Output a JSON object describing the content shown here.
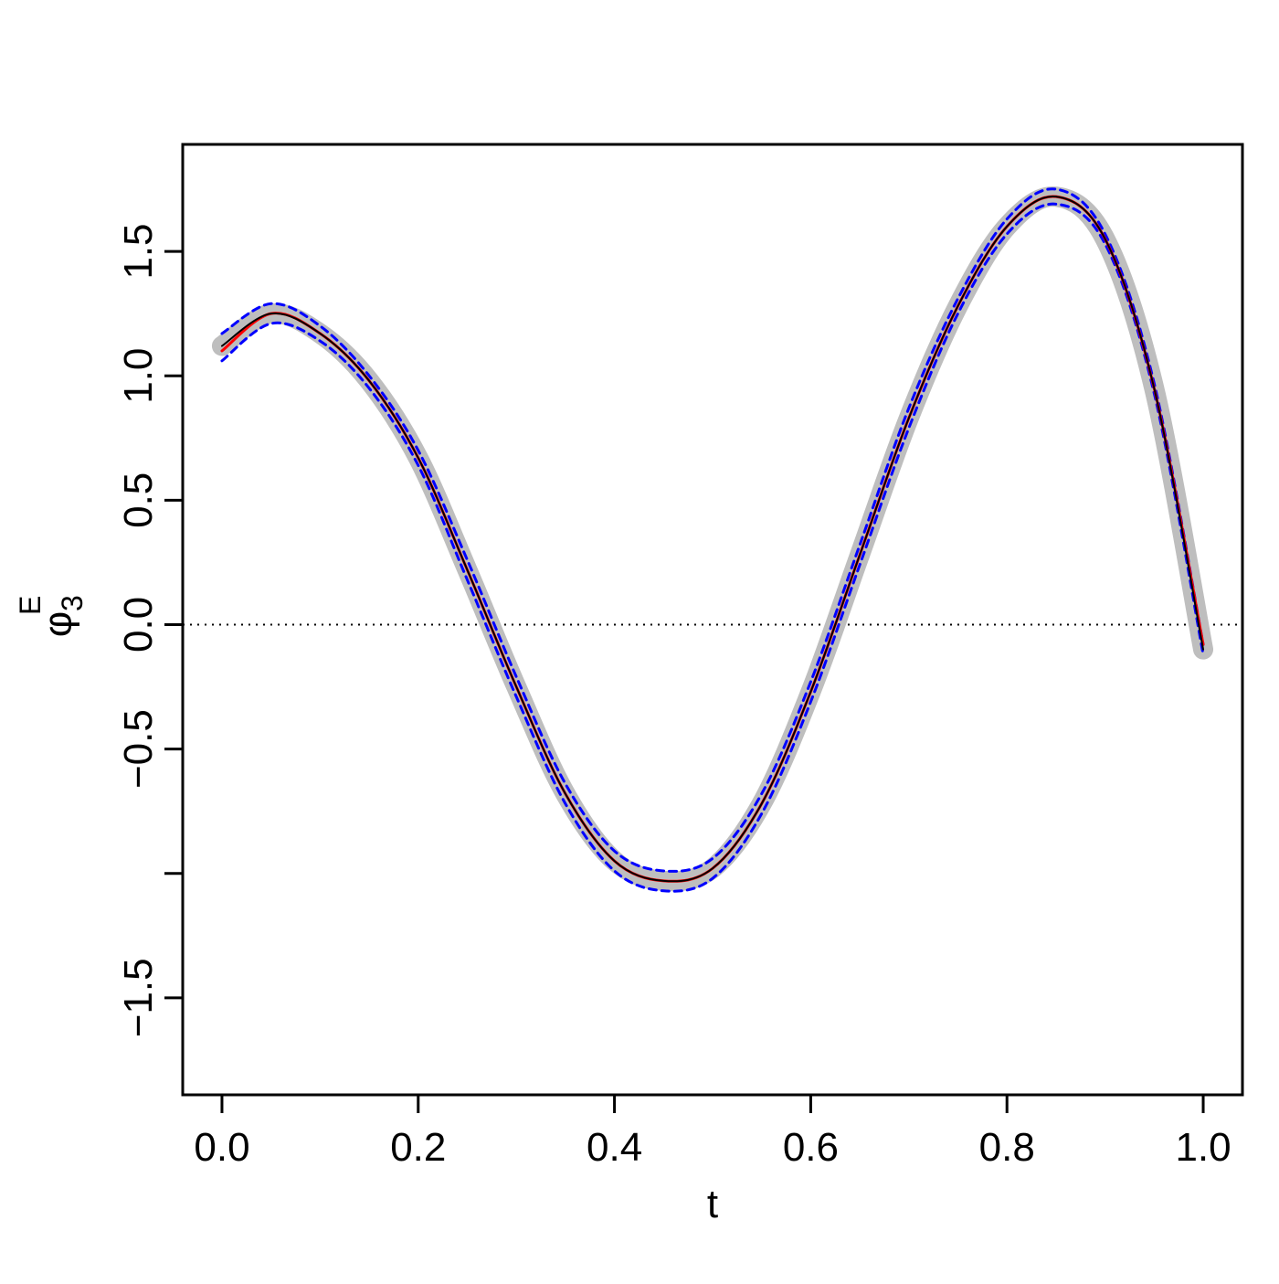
{
  "chart_data": {
    "type": "line",
    "xlabel": "t",
    "ylabel": {
      "symbol": "φ",
      "sub": "3",
      "sup": "E"
    },
    "x": [
      0,
      0.05,
      0.1,
      0.15,
      0.2,
      0.25,
      0.3,
      0.35,
      0.4,
      0.45,
      0.5,
      0.55,
      0.6,
      0.65,
      0.7,
      0.75,
      0.8,
      0.85,
      0.9,
      0.95,
      1.0
    ],
    "series": [
      {
        "color": "#bebebe",
        "width": 22,
        "dash": "none",
        "values": [
          1.12,
          1.25,
          1.17,
          0.98,
          0.67,
          0.22,
          -0.25,
          -0.68,
          -0.95,
          -1.03,
          -0.98,
          -0.72,
          -0.27,
          0.28,
          0.83,
          1.28,
          1.6,
          1.72,
          1.55,
          0.95,
          -0.1
        ]
      },
      {
        "color": "#0000ff",
        "width": 3,
        "dash": "8 6",
        "values": [
          1.17,
          1.29,
          1.2,
          1.0,
          0.7,
          0.26,
          -0.21,
          -0.64,
          -0.91,
          -0.99,
          -0.94,
          -0.68,
          -0.23,
          0.32,
          0.87,
          1.31,
          1.63,
          1.75,
          1.57,
          0.97,
          -0.08
        ]
      },
      {
        "color": "#0000ff",
        "width": 3,
        "dash": "8 6",
        "values": [
          1.06,
          1.21,
          1.14,
          0.95,
          0.64,
          0.18,
          -0.29,
          -0.72,
          -0.99,
          -1.07,
          -1.02,
          -0.76,
          -0.31,
          0.24,
          0.79,
          1.25,
          1.57,
          1.69,
          1.53,
          0.93,
          -0.12
        ]
      },
      {
        "color": "#ff0000",
        "width": 3,
        "dash": "none",
        "values": [
          1.1,
          1.25,
          1.17,
          0.98,
          0.67,
          0.22,
          -0.25,
          -0.68,
          -0.95,
          -1.03,
          -0.98,
          -0.72,
          -0.27,
          0.28,
          0.83,
          1.28,
          1.6,
          1.72,
          1.55,
          0.95,
          -0.08
        ]
      },
      {
        "color": "#000000",
        "width": 2,
        "dash": "none",
        "values": [
          1.12,
          1.25,
          1.17,
          0.98,
          0.67,
          0.22,
          -0.25,
          -0.68,
          -0.95,
          -1.03,
          -0.98,
          -0.72,
          -0.27,
          0.28,
          0.83,
          1.28,
          1.6,
          1.72,
          1.55,
          0.95,
          -0.1
        ]
      }
    ],
    "reference_line": 0,
    "xlim": [
      -0.04,
      1.04
    ],
    "ylim": [
      -1.89,
      1.93
    ],
    "xticks": [
      {
        "value": 0,
        "label": "0.0"
      },
      0.2,
      0.4,
      0.6,
      0.8,
      {
        "value": 1,
        "label": "1.0"
      }
    ],
    "yticks": [
      {
        "value": -1.5,
        "label": "−1.5"
      },
      {
        "value": -0.5,
        "label": "−0.5"
      },
      {
        "value": 0,
        "label": "0.0"
      },
      0.5,
      {
        "value": 1,
        "label": "1.0"
      },
      1.5
    ],
    "yticks_unlabeled": [
      -1
    ]
  }
}
